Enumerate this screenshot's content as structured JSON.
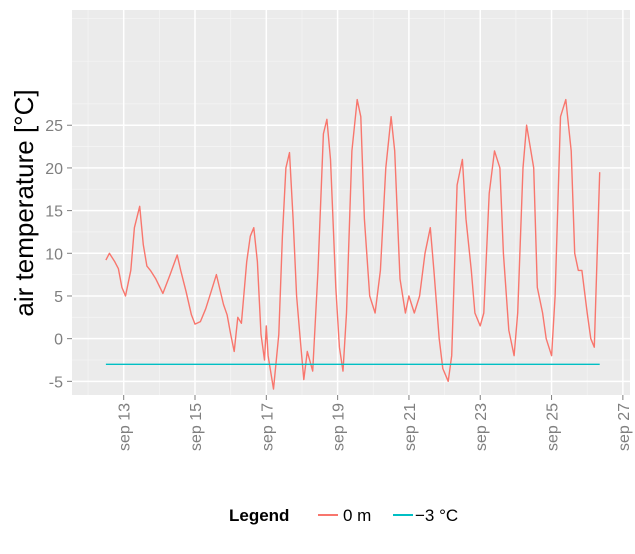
{
  "chart_data": {
    "type": "line",
    "title": "",
    "xlabel": "",
    "ylabel": "air temperature [°C]",
    "x_unit": "day of September",
    "xlim": [
      11.55,
      27.2
    ],
    "ylim": [
      -6.6,
      38.5
    ],
    "x_ticks": [
      13,
      15,
      17,
      19,
      21,
      23,
      25,
      27
    ],
    "x_tick_labels": [
      "sep 13",
      "sep 15",
      "sep 17",
      "sep 19",
      "sep 21",
      "sep 23",
      "sep 25",
      "sep 27"
    ],
    "y_ticks": [
      -5,
      0,
      5,
      10,
      15,
      20,
      25
    ],
    "y_tick_labels": [
      "-5",
      "0",
      "5",
      "10",
      "15",
      "20",
      "25"
    ],
    "grid": true,
    "legend": {
      "title": "Legend",
      "position": "bottom",
      "entries": [
        "0 m",
        "−3 °C"
      ]
    },
    "series": [
      {
        "name": "0 m",
        "color": "#f8766d",
        "x": [
          12.5,
          12.6,
          12.75,
          12.85,
          12.95,
          13.05,
          13.2,
          13.3,
          13.45,
          13.55,
          13.65,
          13.75,
          13.9,
          14.1,
          14.3,
          14.5,
          14.6,
          14.75,
          14.9,
          15.0,
          15.15,
          15.3,
          15.45,
          15.6,
          15.8,
          15.9,
          16.0,
          16.1,
          16.2,
          16.3,
          16.45,
          16.55,
          16.65,
          16.75,
          16.85,
          16.95,
          17.0,
          17.05,
          17.2,
          17.35,
          17.45,
          17.55,
          17.65,
          17.75,
          17.85,
          17.95,
          18.05,
          18.15,
          18.3,
          18.45,
          18.6,
          18.7,
          18.8,
          18.95,
          19.05,
          19.15,
          19.25,
          19.4,
          19.55,
          19.65,
          19.75,
          19.9,
          20.05,
          20.2,
          20.35,
          20.5,
          20.6,
          20.75,
          20.9,
          21.0,
          21.15,
          21.3,
          21.45,
          21.6,
          21.7,
          21.85,
          21.95,
          22.1,
          22.2,
          22.35,
          22.5,
          22.6,
          22.75,
          22.85,
          23.0,
          23.1,
          23.25,
          23.4,
          23.55,
          23.65,
          23.8,
          23.95,
          24.05,
          24.2,
          24.3,
          24.5,
          24.6,
          24.75,
          24.85,
          25.0,
          25.1,
          25.25,
          25.4,
          25.55,
          25.65,
          25.75,
          25.85,
          26.0,
          26.1,
          26.2,
          26.35
        ],
        "y": [
          9.2,
          10.0,
          9.0,
          8.2,
          6.0,
          5.0,
          8.0,
          13.0,
          15.5,
          11.0,
          8.5,
          8.0,
          7.0,
          5.3,
          7.5,
          9.8,
          8.0,
          5.5,
          2.8,
          1.7,
          2.0,
          3.5,
          5.5,
          7.5,
          4.0,
          2.8,
          0.5,
          -1.5,
          2.5,
          1.8,
          9.0,
          12.0,
          13.0,
          9.0,
          0.5,
          -2.5,
          1.5,
          -2.0,
          -5.9,
          0.5,
          12.0,
          20.0,
          21.8,
          14.0,
          5.0,
          0.0,
          -4.8,
          -1.5,
          -3.8,
          8.0,
          24.0,
          25.7,
          21.0,
          6.0,
          -1.0,
          -3.8,
          3.0,
          22.0,
          28.0,
          26.0,
          14.0,
          5.0,
          3.0,
          8.0,
          20.0,
          26.0,
          22.0,
          7.0,
          3.0,
          5.0,
          3.0,
          5.0,
          10.0,
          13.0,
          8.0,
          0.0,
          -3.5,
          -5.0,
          -2.0,
          18.0,
          21.0,
          14.0,
          8.0,
          3.0,
          1.5,
          3.0,
          17.0,
          22.0,
          20.0,
          10.0,
          1.0,
          -2.0,
          3.0,
          20.0,
          25.0,
          20.0,
          6.0,
          3.0,
          0.0,
          -2.0,
          5.0,
          26.0,
          28.0,
          22.0,
          10.0,
          8.0,
          8.0,
          3.0,
          0.0,
          -1.0,
          19.5
        ]
      },
      {
        "name": "−3 °C",
        "color": "#00bfc4",
        "x": [
          12.5,
          26.35
        ],
        "y": [
          -3,
          -3
        ]
      }
    ]
  }
}
